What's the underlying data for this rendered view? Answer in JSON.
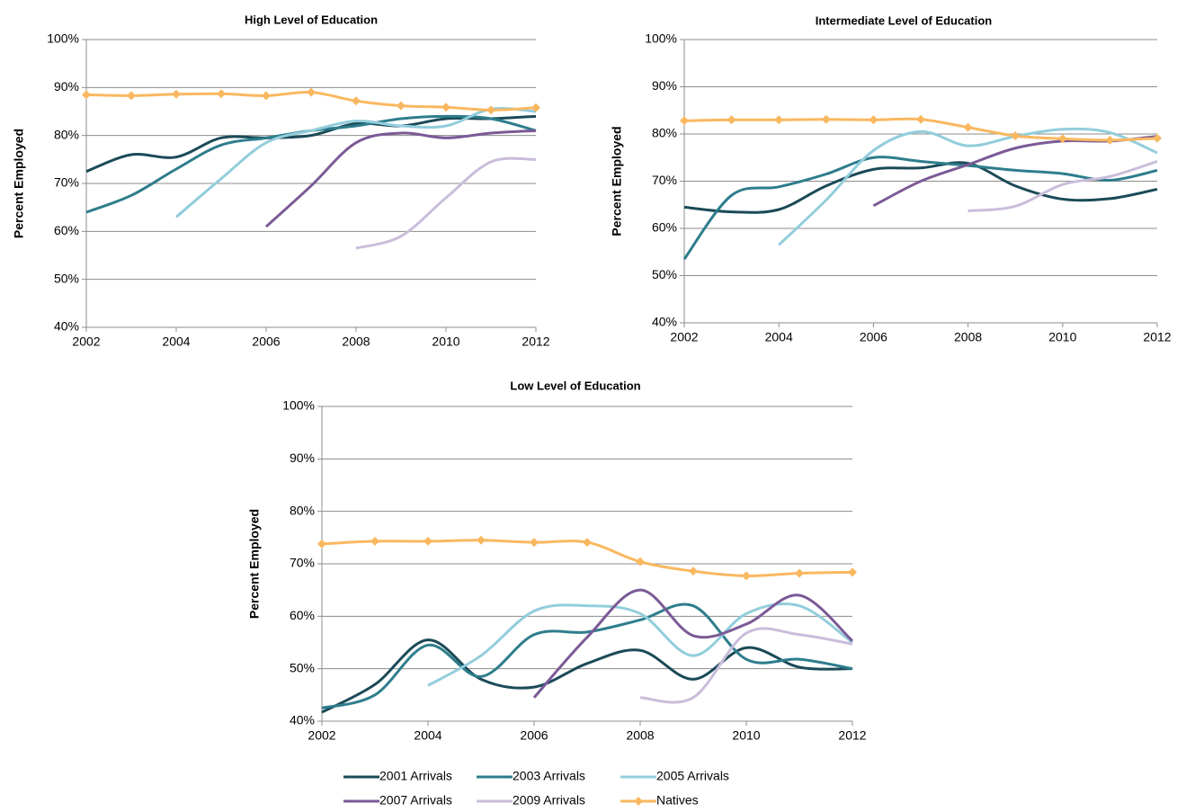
{
  "chart_data": [
    {
      "type": "line",
      "title": "High Level of Education",
      "ylabel": "Percent Employed",
      "x": [
        2002,
        2003,
        2004,
        2005,
        2006,
        2007,
        2008,
        2009,
        2010,
        2011,
        2012
      ],
      "xlim": [
        2002,
        2012
      ],
      "xticks": [
        2002,
        2004,
        2006,
        2008,
        2010,
        2012
      ],
      "ylim": [
        40,
        100
      ],
      "yticks": [
        {
          "value": 40,
          "label": "40%"
        },
        {
          "value": 50,
          "label": "50%"
        },
        {
          "value": 60,
          "label": "60%"
        },
        {
          "value": 70,
          "label": "70%"
        },
        {
          "value": 80,
          "label": "80%"
        },
        {
          "value": 90,
          "label": "90%"
        },
        {
          "value": 100,
          "label": "100%"
        }
      ],
      "grid": true,
      "series": [
        {
          "color": "#1b4a57",
          "values": [
            72.5,
            76,
            75.5,
            79.5,
            79.5,
            80,
            82.5,
            82,
            83.5,
            83.5,
            84
          ]
        },
        {
          "color": "#2e7d8c",
          "values": [
            64,
            67.5,
            73,
            78,
            79.5,
            81,
            82,
            83.5,
            84,
            83.5,
            81
          ]
        },
        {
          "color": "#92cddc",
          "values": [
            null,
            null,
            63,
            71,
            78.5,
            81,
            83,
            82,
            82,
            85.5,
            85
          ]
        },
        {
          "color": "#7b5a96",
          "values": [
            null,
            null,
            null,
            null,
            61,
            69.5,
            78.5,
            80.5,
            79.5,
            80.5,
            81
          ]
        },
        {
          "color": "#c9bddb",
          "values": [
            null,
            null,
            null,
            null,
            null,
            null,
            56.5,
            59,
            67,
            74.5,
            75
          ]
        },
        {
          "color": "#f9b860",
          "marker": "diamond",
          "values": [
            88.5,
            88.3,
            88.6,
            88.7,
            88.3,
            89,
            87.2,
            86.2,
            85.9,
            85.3,
            85.8
          ]
        }
      ]
    },
    {
      "type": "line",
      "title": "Intermediate Level of Education",
      "ylabel": "Percent Employed",
      "x": [
        2002,
        2003,
        2004,
        2005,
        2006,
        2007,
        2008,
        2009,
        2010,
        2011,
        2012
      ],
      "xlim": [
        2002,
        2012
      ],
      "xticks": [
        2002,
        2004,
        2006,
        2008,
        2010,
        2012
      ],
      "ylim": [
        40,
        100
      ],
      "yticks": [
        {
          "value": 40,
          "label": "40%"
        },
        {
          "value": 50,
          "label": "50%"
        },
        {
          "value": 60,
          "label": "60%"
        },
        {
          "value": 70,
          "label": "70%"
        },
        {
          "value": 80,
          "label": "80%"
        },
        {
          "value": 90,
          "label": "90%"
        },
        {
          "value": 100,
          "label": "100%"
        }
      ],
      "grid": true,
      "series": [
        {
          "color": "#1b4a57",
          "values": [
            64.5,
            63.5,
            64,
            69,
            72.5,
            72.8,
            73.8,
            69,
            66.2,
            66.3,
            68.3
          ]
        },
        {
          "color": "#2e7d8c",
          "values": [
            53.5,
            67,
            68.8,
            71.5,
            75,
            74.2,
            73.3,
            72.3,
            71.6,
            70.2,
            72.3
          ]
        },
        {
          "color": "#92cddc",
          "values": [
            null,
            null,
            56.5,
            66,
            76.5,
            80.5,
            77.5,
            79.5,
            81,
            80.3,
            76
          ]
        },
        {
          "color": "#7b5a96",
          "values": [
            null,
            null,
            null,
            null,
            64.8,
            70,
            73.5,
            77,
            78.5,
            78.5,
            79.5
          ]
        },
        {
          "color": "#c9bddb",
          "values": [
            null,
            null,
            null,
            null,
            null,
            null,
            63.7,
            64.7,
            69.3,
            71,
            74.2
          ]
        },
        {
          "color": "#f9b860",
          "marker": "diamond",
          "values": [
            82.8,
            83,
            83,
            83.1,
            83,
            83.1,
            81.4,
            79.6,
            79,
            78.7,
            79.1
          ]
        }
      ]
    },
    {
      "type": "line",
      "title": "Low Level of Education",
      "ylabel": "Percent Employed",
      "x": [
        2002,
        2003,
        2004,
        2005,
        2006,
        2007,
        2008,
        2009,
        2010,
        2011,
        2012
      ],
      "xlim": [
        2002,
        2012
      ],
      "xticks": [
        2002,
        2004,
        2006,
        2008,
        2010,
        2012
      ],
      "ylim": [
        40,
        100
      ],
      "yticks": [
        {
          "value": 40,
          "label": "40%"
        },
        {
          "value": 50,
          "label": "50%"
        },
        {
          "value": 60,
          "label": "60%"
        },
        {
          "value": 70,
          "label": "70%"
        },
        {
          "value": 80,
          "label": "80%"
        },
        {
          "value": 90,
          "label": "90%"
        },
        {
          "value": 100,
          "label": "100%"
        }
      ],
      "grid": true,
      "legend": "bottom",
      "series": [
        {
          "name": "2001 Arrivals",
          "color": "#1b4a57",
          "values": [
            41.7,
            47,
            55.5,
            48,
            46.5,
            51,
            53.5,
            48,
            54,
            50.3,
            50
          ]
        },
        {
          "name": "2003 Arrivals",
          "color": "#2e7d8c",
          "values": [
            42.5,
            45,
            54.5,
            48.5,
            56.5,
            57,
            59.3,
            62,
            51.8,
            51.8,
            50
          ]
        },
        {
          "name": "2005 Arrivals",
          "color": "#92cddc",
          "values": [
            null,
            null,
            46.8,
            52.5,
            61,
            62,
            60.5,
            52.5,
            60.5,
            62,
            55
          ]
        },
        {
          "name": "2007 Arrivals",
          "color": "#7b5a96",
          "values": [
            null,
            null,
            null,
            null,
            44.5,
            56,
            65,
            56.3,
            58.5,
            64,
            55.3
          ]
        },
        {
          "name": "2009 Arrivals",
          "color": "#c9bddb",
          "values": [
            null,
            null,
            null,
            null,
            null,
            null,
            44.5,
            44.5,
            56.8,
            56.5,
            54.7
          ]
        },
        {
          "name": "Natives",
          "color": "#f9b860",
          "marker": "diamond",
          "values": [
            73.8,
            74.3,
            74.3,
            74.5,
            74.1,
            74.1,
            70.4,
            68.6,
            67.7,
            68.2,
            68.4
          ]
        }
      ]
    }
  ]
}
